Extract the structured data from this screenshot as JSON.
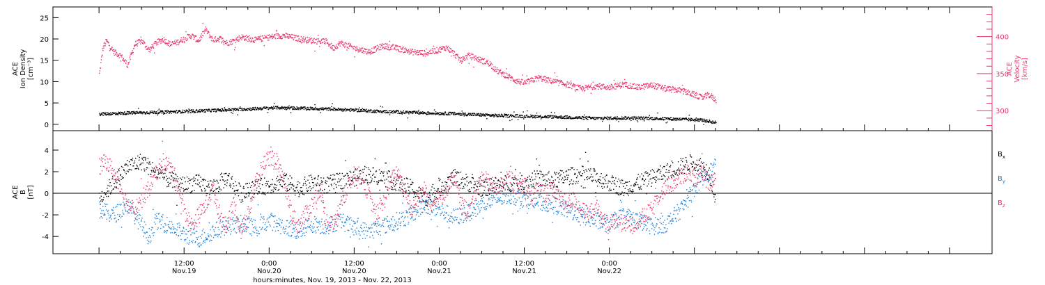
{
  "chart_data": [
    {
      "type": "scatter",
      "panel": "top",
      "left_axis": {
        "label_lines": [
          "ACE",
          "Ion Density",
          "[cm⁻³]"
        ],
        "ylim": [
          -1.5,
          27.5
        ],
        "ticks": [
          0,
          5,
          10,
          15,
          20,
          25
        ],
        "color": "#000000"
      },
      "right_axis": {
        "label_lines": [
          "ACE",
          "Velocity",
          "[km/s]"
        ],
        "ylim": [
          273,
          440
        ],
        "ticks": [
          300,
          350,
          400
        ],
        "color": "#e8366a"
      },
      "series": [
        {
          "axis": "right",
          "color": "#e8366a",
          "points": [
            [
              0,
              350
            ],
            [
              0.5,
              385
            ],
            [
              1,
              395
            ],
            [
              2,
              380
            ],
            [
              3,
              375
            ],
            [
              4,
              362
            ],
            [
              5,
              390
            ],
            [
              6,
              395
            ],
            [
              7,
              382
            ],
            [
              8,
              392
            ],
            [
              9,
              397
            ],
            [
              10,
              390
            ],
            [
              11,
              393
            ],
            [
              12,
              398
            ],
            [
              13,
              402
            ],
            [
              14,
              395
            ],
            [
              15,
              410
            ],
            [
              16,
              396
            ],
            [
              17,
              398
            ],
            [
              18,
              392
            ],
            [
              19,
              395
            ],
            [
              20,
              400
            ],
            [
              22,
              396
            ],
            [
              24,
              400
            ],
            [
              26,
              402
            ],
            [
              28,
              398
            ],
            [
              30,
              395
            ],
            [
              32,
              394
            ],
            [
              33,
              385
            ],
            [
              34,
              392
            ],
            [
              36,
              385
            ],
            [
              38,
              380
            ],
            [
              40,
              388
            ],
            [
              42,
              385
            ],
            [
              44,
              380
            ],
            [
              46,
              378
            ],
            [
              48,
              383
            ],
            [
              49,
              386
            ],
            [
              50,
              378
            ],
            [
              51,
              368
            ],
            [
              52,
              375
            ],
            [
              53,
              372
            ],
            [
              54,
              368
            ],
            [
              55,
              365
            ],
            [
              56,
              355
            ],
            [
              57,
              350
            ],
            [
              58,
              345
            ],
            [
              59,
              340
            ],
            [
              60,
              338
            ],
            [
              62,
              345
            ],
            [
              64,
              340
            ],
            [
              66,
              336
            ],
            [
              68,
              330
            ],
            [
              70,
              334
            ],
            [
              72,
              332
            ],
            [
              74,
              336
            ],
            [
              76,
              332
            ],
            [
              78,
              335
            ],
            [
              80,
              330
            ],
            [
              82,
              328
            ],
            [
              84,
              322
            ],
            [
              85,
              318
            ],
            [
              86,
              322
            ],
            [
              87,
              315
            ]
          ]
        },
        {
          "axis": "left",
          "color": "#000000",
          "points": [
            [
              0,
              2.5
            ],
            [
              5,
              2.8
            ],
            [
              10,
              3.0
            ],
            [
              15,
              3.3
            ],
            [
              20,
              3.6
            ],
            [
              25,
              4.0
            ],
            [
              30,
              3.8
            ],
            [
              35,
              3.5
            ],
            [
              40,
              3.1
            ],
            [
              45,
              2.8
            ],
            [
              50,
              2.6
            ],
            [
              55,
              2.2
            ],
            [
              60,
              2.0
            ],
            [
              65,
              1.8
            ],
            [
              70,
              1.5
            ],
            [
              75,
              1.6
            ],
            [
              80,
              1.4
            ],
            [
              85,
              1.1
            ],
            [
              87,
              0.5
            ]
          ]
        }
      ]
    },
    {
      "type": "scatter",
      "panel": "bottom",
      "left_axis": {
        "label_lines": [
          "ACE",
          "B",
          "[nT]"
        ],
        "ylim": [
          -5.6,
          5.8
        ],
        "ticks": [
          -4,
          -2,
          0,
          2,
          4
        ]
      },
      "legend": [
        {
          "label": "B",
          "sub": "x",
          "color": "#000000"
        },
        {
          "label": "B",
          "sub": "y",
          "color": "#1a7fd6"
        },
        {
          "label": "B",
          "sub": "z",
          "color": "#e8366a"
        }
      ],
      "series": [
        {
          "name": "Bx",
          "color": "#000000",
          "points": [
            [
              0,
              -0.5
            ],
            [
              2,
              1.0
            ],
            [
              4,
              2.5
            ],
            [
              6,
              3.0
            ],
            [
              8,
              2.0
            ],
            [
              10,
              1.2
            ],
            [
              12,
              0.8
            ],
            [
              14,
              1.0
            ],
            [
              16,
              0.5
            ],
            [
              18,
              1.5
            ],
            [
              20,
              0.0
            ],
            [
              22,
              0.5
            ],
            [
              24,
              0.8
            ],
            [
              26,
              1.2
            ],
            [
              28,
              0.5
            ],
            [
              30,
              1.0
            ],
            [
              32,
              0.8
            ],
            [
              34,
              1.2
            ],
            [
              36,
              1.5
            ],
            [
              38,
              1.8
            ],
            [
              40,
              1.5
            ],
            [
              42,
              1.0
            ],
            [
              44,
              0.5
            ],
            [
              46,
              -0.5
            ],
            [
              48,
              0.5
            ],
            [
              50,
              1.5
            ],
            [
              52,
              1.0
            ],
            [
              54,
              0.5
            ],
            [
              56,
              0.8
            ],
            [
              58,
              1.0
            ],
            [
              60,
              1.2
            ],
            [
              62,
              1.4
            ],
            [
              64,
              1.2
            ],
            [
              66,
              1.6
            ],
            [
              68,
              1.8
            ],
            [
              70,
              1.5
            ],
            [
              72,
              1.0
            ],
            [
              74,
              0.5
            ],
            [
              76,
              1.0
            ],
            [
              78,
              1.5
            ],
            [
              80,
              2.0
            ],
            [
              82,
              2.5
            ],
            [
              84,
              3.0
            ],
            [
              85,
              2.5
            ],
            [
              86,
              2.0
            ],
            [
              87,
              -0.5
            ]
          ]
        },
        {
          "name": "By",
          "color": "#1a7fd6",
          "points": [
            [
              0,
              -1.5
            ],
            [
              2,
              -2.0
            ],
            [
              4,
              -1.0
            ],
            [
              6,
              -3.0
            ],
            [
              7,
              -4.0
            ],
            [
              8,
              -2.5
            ],
            [
              10,
              -3.0
            ],
            [
              12,
              -3.8
            ],
            [
              14,
              -4.2
            ],
            [
              16,
              -3.5
            ],
            [
              18,
              -3.0
            ],
            [
              20,
              -2.8
            ],
            [
              22,
              -3.2
            ],
            [
              24,
              -2.5
            ],
            [
              26,
              -3.0
            ],
            [
              28,
              -3.5
            ],
            [
              30,
              -2.8
            ],
            [
              32,
              -3.0
            ],
            [
              34,
              -2.5
            ],
            [
              36,
              -3.2
            ],
            [
              38,
              -3.5
            ],
            [
              40,
              -3.0
            ],
            [
              42,
              -2.5
            ],
            [
              44,
              -2.0
            ],
            [
              46,
              -1.0
            ],
            [
              48,
              -1.5
            ],
            [
              50,
              -2.2
            ],
            [
              52,
              -1.8
            ],
            [
              54,
              -1.0
            ],
            [
              56,
              -0.5
            ],
            [
              58,
              -0.2
            ],
            [
              60,
              -0.5
            ],
            [
              62,
              -0.8
            ],
            [
              64,
              -1.0
            ],
            [
              66,
              -1.5
            ],
            [
              68,
              -2.0
            ],
            [
              70,
              -2.5
            ],
            [
              72,
              -2.8
            ],
            [
              74,
              -2.0
            ],
            [
              76,
              -2.5
            ],
            [
              78,
              -3.0
            ],
            [
              80,
              -2.8
            ],
            [
              82,
              -1.5
            ],
            [
              84,
              0.5
            ],
            [
              85,
              1.5
            ],
            [
              86,
              2.0
            ],
            [
              87,
              2.5
            ]
          ]
        },
        {
          "name": "Bz",
          "color": "#e8366a",
          "points": [
            [
              0,
              2.5
            ],
            [
              1,
              3.0
            ],
            [
              2,
              2.0
            ],
            [
              3,
              0.5
            ],
            [
              4,
              -1.0
            ],
            [
              5,
              -1.5
            ],
            [
              6,
              -0.5
            ],
            [
              7,
              0.5
            ],
            [
              8,
              2.0
            ],
            [
              9,
              3.0
            ],
            [
              10,
              2.5
            ],
            [
              11,
              1.0
            ],
            [
              12,
              -1.5
            ],
            [
              13,
              -3.0
            ],
            [
              14,
              -2.0
            ],
            [
              15,
              -1.0
            ],
            [
              16,
              0.5
            ],
            [
              17,
              -2.0
            ],
            [
              18,
              -3.0
            ],
            [
              19,
              -1.0
            ],
            [
              20,
              -3.5
            ],
            [
              21,
              -2.0
            ],
            [
              22,
              1.0
            ],
            [
              23,
              2.5
            ],
            [
              24,
              3.5
            ],
            [
              25,
              3.0
            ],
            [
              26,
              1.0
            ],
            [
              27,
              -1.5
            ],
            [
              28,
              -3.0
            ],
            [
              29,
              -2.0
            ],
            [
              30,
              -1.0
            ],
            [
              31,
              0.5
            ],
            [
              32,
              -2.5
            ],
            [
              33,
              -3.0
            ],
            [
              34,
              -1.0
            ],
            [
              35,
              0.5
            ],
            [
              36,
              2.0
            ],
            [
              37,
              1.5
            ],
            [
              38,
              0.0
            ],
            [
              39,
              -2.0
            ],
            [
              40,
              -1.0
            ],
            [
              41,
              1.0
            ],
            [
              42,
              2.0
            ],
            [
              43,
              0.5
            ],
            [
              44,
              -1.5
            ],
            [
              45,
              -0.5
            ],
            [
              46,
              0.5
            ],
            [
              47,
              -1.0
            ],
            [
              48,
              -0.5
            ],
            [
              49,
              0.5
            ],
            [
              50,
              1.5
            ],
            [
              51,
              -1.0
            ],
            [
              52,
              -1.5
            ],
            [
              53,
              0.0
            ],
            [
              54,
              1.5
            ],
            [
              55,
              1.0
            ],
            [
              56,
              0.5
            ],
            [
              57,
              1.0
            ],
            [
              58,
              1.5
            ],
            [
              59,
              0.5
            ],
            [
              60,
              1.0
            ],
            [
              61,
              -0.5
            ],
            [
              62,
              0.5
            ],
            [
              63,
              0.0
            ],
            [
              64,
              0.5
            ],
            [
              65,
              -0.5
            ],
            [
              66,
              -1.0
            ],
            [
              67,
              -0.5
            ],
            [
              68,
              -1.5
            ],
            [
              69,
              -2.0
            ],
            [
              70,
              -1.0
            ],
            [
              71,
              -2.5
            ],
            [
              72,
              -3.0
            ],
            [
              73,
              -2.5
            ],
            [
              74,
              -2.8
            ],
            [
              75,
              -3.0
            ],
            [
              76,
              -2.5
            ],
            [
              77,
              -2.0
            ],
            [
              78,
              -1.5
            ],
            [
              79,
              0.0
            ],
            [
              80,
              0.5
            ],
            [
              81,
              1.0
            ],
            [
              82,
              1.5
            ],
            [
              83,
              2.0
            ],
            [
              84,
              1.5
            ],
            [
              85,
              2.0
            ],
            [
              86,
              1.0
            ],
            [
              87,
              1.5
            ]
          ]
        }
      ]
    }
  ],
  "x_axis": {
    "x_range_hours": [
      -6.5,
      126
    ],
    "ticks": [
      {
        "hour": 12,
        "line1": "12:00",
        "line2": "Nov.19"
      },
      {
        "hour": 24,
        "line1": "0:00",
        "line2": "Nov.20"
      },
      {
        "hour": 36,
        "line1": "12:00",
        "line2": "Nov.20"
      },
      {
        "hour": 48,
        "line1": "0:00",
        "line2": "Nov.21"
      },
      {
        "hour": 60,
        "line1": "12:00",
        "line2": "Nov.21"
      },
      {
        "hour": 72,
        "line1": "0:00",
        "line2": "Nov.22"
      }
    ],
    "title": "hours:minutes, Nov. 19, 2013 - Nov. 22, 2013"
  }
}
